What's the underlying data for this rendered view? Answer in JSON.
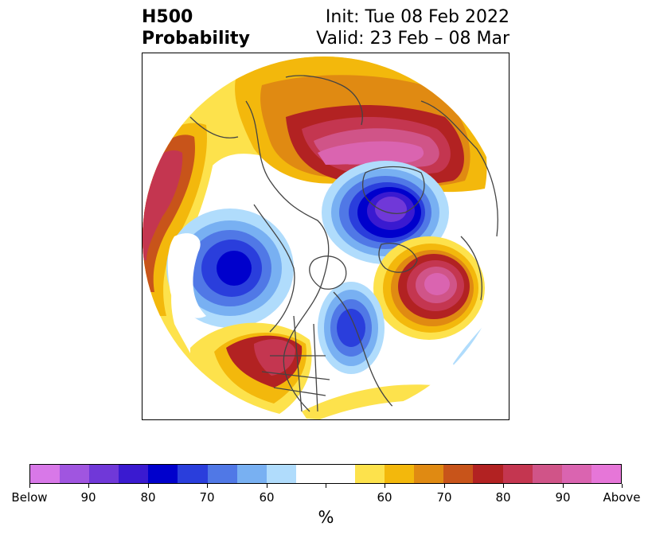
{
  "title": {
    "left_line1": "H500",
    "left_line2": "Probability",
    "right_line1": "Init: Tue 08 Feb 2022",
    "right_line2": "Valid: 23 Feb – 08 Mar"
  },
  "colorbar": {
    "unit": "%",
    "colors": [
      "#d878e8",
      "#a055e0",
      "#7038d8",
      "#3a1ad0",
      "#0000cc",
      "#2a3edc",
      "#5078e6",
      "#78b0f2",
      "#b0dcfc",
      "#ffffff",
      "#ffffff",
      "#fde24c",
      "#f3b80c",
      "#e08a12",
      "#c8541a",
      "#b22222",
      "#c43650",
      "#d05488",
      "#da64b0",
      "#e676d8"
    ],
    "tick_labels": [
      "Below",
      "90",
      "80",
      "70",
      "60",
      "",
      "60",
      "70",
      "80",
      "90",
      "Above"
    ]
  },
  "map": {
    "projection": "polar stereographic, north polar view",
    "colors": {
      "above_outer": "#fde24c",
      "above_60": "#f3b80c",
      "above_70": "#e08a12",
      "above_75": "#c8541a",
      "above_80": "#b22222",
      "above_85": "#c43650",
      "above_90": "#d05488",
      "above_95": "#da64b0",
      "below_outer": "#b0dcfc",
      "below_60": "#78b0f2",
      "below_70": "#5078e6",
      "below_75": "#2a3edc",
      "below_80": "#0000cc",
      "below_85": "#3a1ad0",
      "below_90": "#7038d8"
    }
  }
}
